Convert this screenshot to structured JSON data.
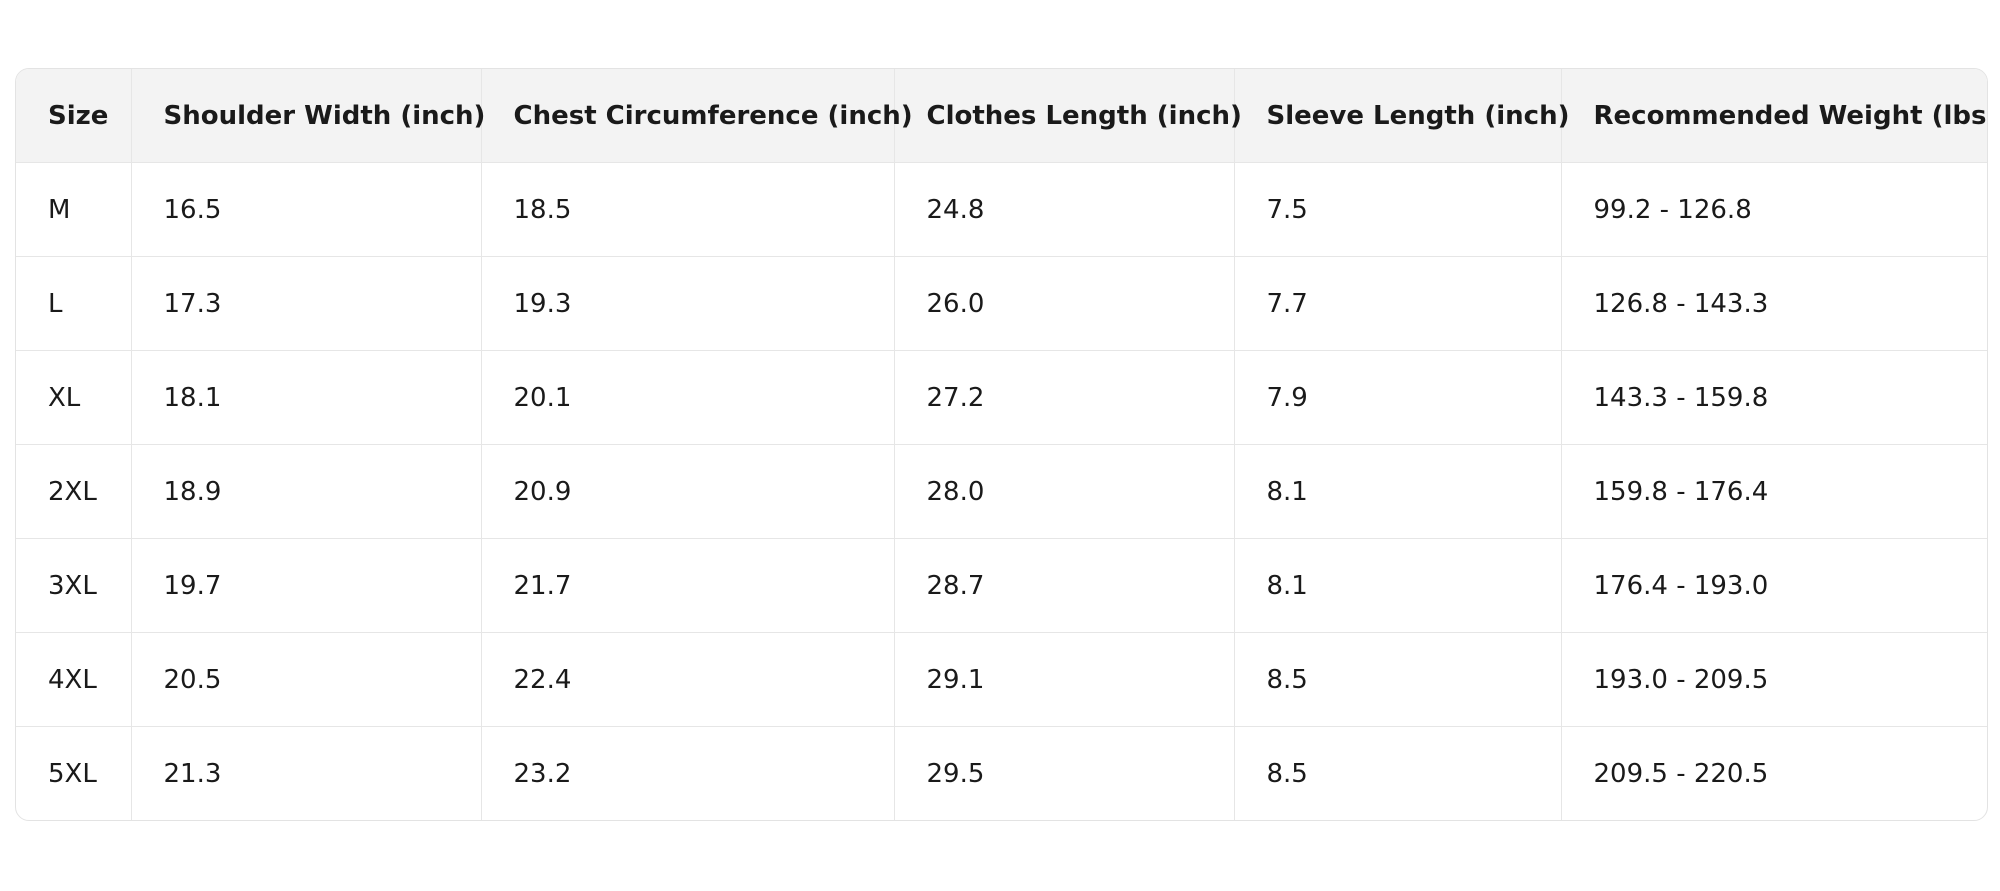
{
  "table": {
    "headers": [
      "Size",
      "Shoulder Width (inch)",
      "Chest Circumference (inch)",
      "Clothes Length (inch)",
      "Sleeve Length (inch)",
      "Recommended Weight (lbs)"
    ],
    "rows": [
      [
        "M",
        "16.5",
        "18.5",
        "24.8",
        "7.5",
        "99.2 - 126.8"
      ],
      [
        "L",
        "17.3",
        "19.3",
        "26.0",
        "7.7",
        "126.8 - 143.3"
      ],
      [
        "XL",
        "18.1",
        "20.1",
        "27.2",
        "7.9",
        "143.3 - 159.8"
      ],
      [
        "2XL",
        "18.9",
        "20.9",
        "28.0",
        "8.1",
        "159.8 - 176.4"
      ],
      [
        "3XL",
        "19.7",
        "21.7",
        "28.7",
        "8.1",
        "176.4 - 193.0"
      ],
      [
        "4XL",
        "20.5",
        "22.4",
        "29.1",
        "8.5",
        "193.0 - 209.5"
      ],
      [
        "5XL",
        "21.3",
        "23.2",
        "29.5",
        "8.5",
        "209.5 - 220.5"
      ]
    ]
  }
}
